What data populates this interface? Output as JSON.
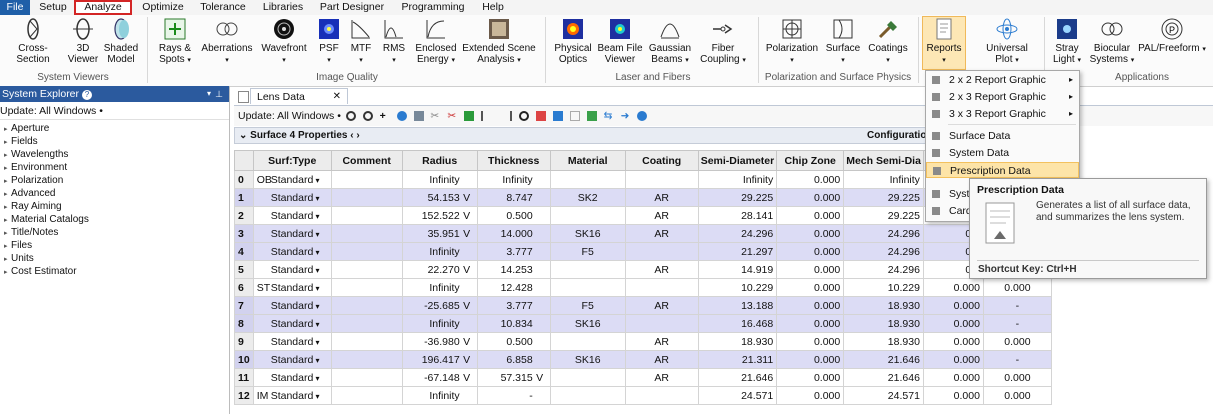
{
  "menu": {
    "items": [
      {
        "label": "File"
      },
      {
        "label": "Setup"
      },
      {
        "label": "Analyze"
      },
      {
        "label": "Optimize"
      },
      {
        "label": "Tolerance"
      },
      {
        "label": "Libraries"
      },
      {
        "label": "Part Designer"
      },
      {
        "label": "Programming"
      },
      {
        "label": "Help"
      }
    ],
    "active": "Analyze"
  },
  "ribbon": {
    "buttons": [
      {
        "label": "Cross-Section",
        "icon": "cross-section-icon"
      },
      {
        "label": "3D Viewer",
        "icon": "3d-viewer-icon"
      },
      {
        "label": "Shaded Model",
        "icon": "shaded-model-icon"
      },
      {
        "label": "Rays & Spots",
        "icon": "rays-spots-icon"
      },
      {
        "label": "Aberrations",
        "icon": "aberrations-icon"
      },
      {
        "label": "Wavefront",
        "icon": "wavefront-icon"
      },
      {
        "label": "PSF",
        "icon": "psf-icon"
      },
      {
        "label": "MTF",
        "icon": "mtf-icon"
      },
      {
        "label": "RMS",
        "icon": "rms-icon"
      },
      {
        "label": "Enclosed Energy",
        "icon": "enclosed-energy-icon"
      },
      {
        "label": "Extended Scene Analysis",
        "icon": "extended-scene-icon"
      },
      {
        "label": "Physical Optics",
        "icon": "physical-optics-icon"
      },
      {
        "label": "Beam File Viewer",
        "icon": "beam-file-icon"
      },
      {
        "label": "Gaussian Beams",
        "icon": "gaussian-beams-icon"
      },
      {
        "label": "Fiber Coupling",
        "icon": "fiber-coupling-icon"
      },
      {
        "label": "Polarization",
        "icon": "polarization-icon"
      },
      {
        "label": "Surface",
        "icon": "surface-icon"
      },
      {
        "label": "Coatings",
        "icon": "coatings-icon"
      },
      {
        "label": "Reports",
        "icon": "reports-icon"
      },
      {
        "label": "Universal Plot",
        "icon": "universal-plot-icon"
      },
      {
        "label": "Stray Light",
        "icon": "stray-light-icon"
      },
      {
        "label": "Biocular Systems",
        "icon": "biocular-icon"
      },
      {
        "label": "PAL/Freeform",
        "icon": "pal-freeform-icon"
      }
    ],
    "groups": [
      "System Viewers",
      "Image Quality",
      "Laser and Fibers",
      "Polarization and Surface Physics",
      "Applications"
    ]
  },
  "explorer": {
    "title": "System Explorer",
    "update": "Update: All Windows •",
    "items": [
      "Aperture",
      "Fields",
      "Wavelengths",
      "Environment",
      "Polarization",
      "Advanced",
      "Ray Aiming",
      "Material Catalogs",
      "Title/Notes",
      "Files",
      "Units",
      "Cost Estimator"
    ]
  },
  "lens": {
    "tab": "Lens Data",
    "update": "Update: All Windows •",
    "props": "Surface 4 Properties",
    "config": "Configuration",
    "columns": [
      "",
      "Surf:Type",
      "Comment",
      "Radius",
      "Thickness",
      "Material",
      "Coating",
      "Semi-Diameter",
      "Chip Zone",
      "Mech Semi-Dia",
      "",
      ""
    ],
    "rows": [
      {
        "n": "0",
        "pre": "OB",
        "type": "Standard",
        "radius": "Infinity",
        "rf": "",
        "thick": "Infinity",
        "tf": "",
        "mat": "",
        "coat": "",
        "semi": "Infinity",
        "chip": "0.000",
        "mech": "Infinity",
        "c1": "",
        "c2": ""
      },
      {
        "n": "1",
        "pre": "",
        "type": "Standard",
        "radius": "54.153",
        "rf": "V",
        "thick": "8.747",
        "tf": "",
        "mat": "SK2",
        "coat": "AR",
        "semi": "29.225",
        "chip": "0.000",
        "mech": "29.225",
        "c1": "",
        "c2": ""
      },
      {
        "n": "2",
        "pre": "",
        "type": "Standard",
        "radius": "152.522",
        "rf": "V",
        "thick": "0.500",
        "tf": "",
        "mat": "",
        "coat": "AR",
        "semi": "28.141",
        "chip": "0.000",
        "mech": "29.225",
        "c1": "",
        "c2": ""
      },
      {
        "n": "3",
        "pre": "",
        "type": "Standard",
        "radius": "35.951",
        "rf": "V",
        "thick": "14.000",
        "tf": "",
        "mat": "SK16",
        "coat": "AR",
        "semi": "24.296",
        "chip": "0.000",
        "mech": "24.296",
        "c1": "0.0",
        "c2": ""
      },
      {
        "n": "4",
        "pre": "",
        "type": "Standard",
        "radius": "Infinity",
        "rf": "",
        "thick": "3.777",
        "tf": "",
        "mat": "F5",
        "coat": "",
        "semi": "21.297",
        "chip": "0.000",
        "mech": "24.296",
        "c1": "0.0",
        "c2": ""
      },
      {
        "n": "5",
        "pre": "",
        "type": "Standard",
        "radius": "22.270",
        "rf": "V",
        "thick": "14.253",
        "tf": "",
        "mat": "",
        "coat": "AR",
        "semi": "14.919",
        "chip": "0.000",
        "mech": "24.296",
        "c1": "0.0",
        "c2": ""
      },
      {
        "n": "6",
        "pre": "ST",
        "type": "Standard",
        "radius": "Infinity",
        "rf": "",
        "thick": "12.428",
        "tf": "",
        "mat": "",
        "coat": "",
        "semi": "10.229",
        "chip": "0.000",
        "mech": "10.229",
        "c1": "0.000",
        "c2": "0.000"
      },
      {
        "n": "7",
        "pre": "",
        "type": "Standard",
        "radius": "-25.685",
        "rf": "V",
        "thick": "3.777",
        "tf": "",
        "mat": "F5",
        "coat": "AR",
        "semi": "13.188",
        "chip": "0.000",
        "mech": "18.930",
        "c1": "0.000",
        "c2": "-"
      },
      {
        "n": "8",
        "pre": "",
        "type": "Standard",
        "radius": "Infinity",
        "rf": "",
        "thick": "10.834",
        "tf": "",
        "mat": "SK16",
        "coat": "",
        "semi": "16.468",
        "chip": "0.000",
        "mech": "18.930",
        "c1": "0.000",
        "c2": "-"
      },
      {
        "n": "9",
        "pre": "",
        "type": "Standard",
        "radius": "-36.980",
        "rf": "V",
        "thick": "0.500",
        "tf": "",
        "mat": "",
        "coat": "AR",
        "semi": "18.930",
        "chip": "0.000",
        "mech": "18.930",
        "c1": "0.000",
        "c2": "0.000"
      },
      {
        "n": "10",
        "pre": "",
        "type": "Standard",
        "radius": "196.417",
        "rf": "V",
        "thick": "6.858",
        "tf": "",
        "mat": "SK16",
        "coat": "AR",
        "semi": "21.311",
        "chip": "0.000",
        "mech": "21.646",
        "c1": "0.000",
        "c2": "-"
      },
      {
        "n": "11",
        "pre": "",
        "type": "Standard",
        "radius": "-67.148",
        "rf": "V",
        "thick": "57.315",
        "tf": "V",
        "mat": "",
        "coat": "AR",
        "semi": "21.646",
        "chip": "0.000",
        "mech": "21.646",
        "c1": "0.000",
        "c2": "0.000"
      },
      {
        "n": "12",
        "pre": "IM",
        "type": "Standard",
        "radius": "Infinity",
        "rf": "",
        "thick": "-",
        "tf": "",
        "mat": "",
        "coat": "",
        "semi": "24.571",
        "chip": "0.000",
        "mech": "24.571",
        "c1": "0.000",
        "c2": "0.000"
      }
    ]
  },
  "dropdown": {
    "items": [
      {
        "label": "2 x 2 Report Graphic",
        "sub": "▸"
      },
      {
        "label": "2 x 3 Report Graphic",
        "sub": "▸"
      },
      {
        "label": "3 x 3 Report Graphic",
        "sub": "▸"
      },
      {
        "label": "Surface Data",
        "sub": ""
      },
      {
        "label": "System Data",
        "sub": ""
      },
      {
        "label": "Prescription Data",
        "sub": ""
      },
      {
        "label": "Syst",
        "sub": ""
      },
      {
        "label": "Card",
        "sub": ""
      }
    ]
  },
  "tooltip": {
    "title": "Prescription Data",
    "desc": "Generates a list of all surface data, and summarizes the lens system.",
    "shortcut": "Shortcut Key: Ctrl+H"
  }
}
